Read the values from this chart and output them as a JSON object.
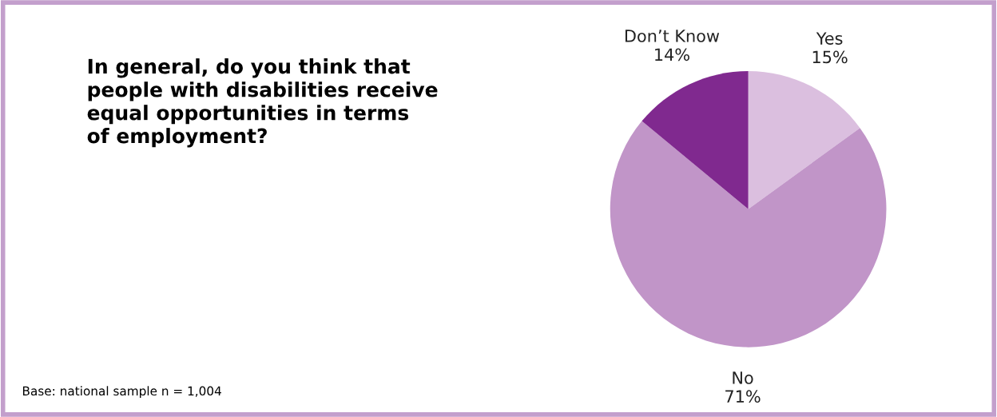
{
  "chart_data": {
    "type": "pie",
    "title": "In general, do you think that\npeople with disabilities receive\nequal opportunities in terms\nof employment?",
    "categories": [
      "Yes",
      "No",
      "Don’t Know"
    ],
    "values": [
      15,
      71,
      14
    ],
    "colors": [
      "#dbbfdf",
      "#c195c8",
      "#80298f"
    ],
    "value_labels": [
      "15%",
      "71%",
      "14%"
    ],
    "annotations": [
      "Base: national sample n = 1,004"
    ]
  }
}
